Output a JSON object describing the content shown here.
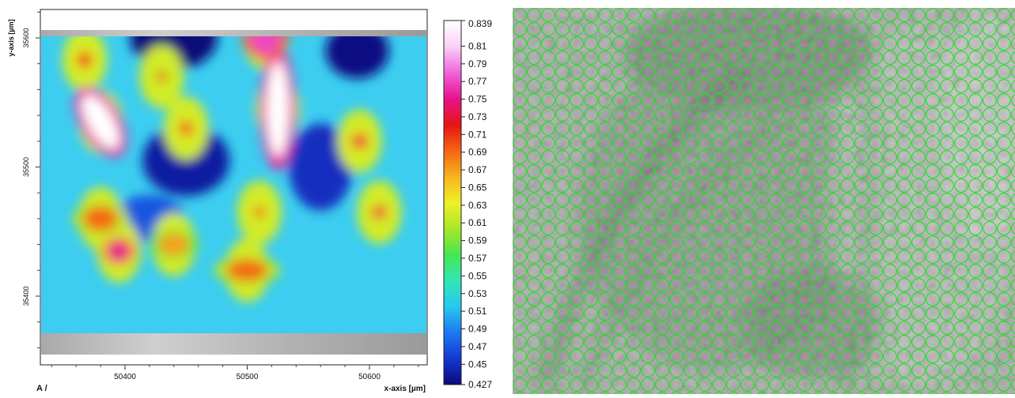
{
  "chart_data": {
    "type": "heatmap",
    "xlabel": "x-axis [µm]",
    "ylabel": "y-axis [µm]",
    "corner_label": "A /",
    "x_ticks": [
      "50400",
      "50500",
      "50600"
    ],
    "y_ticks": [
      "35600",
      "35500",
      "35400"
    ],
    "colorbar": {
      "ticks": [
        "0.839",
        "0.81",
        "0.79",
        "0.77",
        "0.75",
        "0.73",
        "0.71",
        "0.69",
        "0.67",
        "0.65",
        "0.63",
        "0.61",
        "0.59",
        "0.57",
        "0.55",
        "0.53",
        "0.51",
        "0.49",
        "0.47",
        "0.45",
        "0.427"
      ],
      "min": 0.427,
      "max": 0.839,
      "palette": [
        "#0a0a7a",
        "#1438d2",
        "#1e78f0",
        "#28c8f0",
        "#32e6b4",
        "#46e650",
        "#aae628",
        "#f0f028",
        "#f5b41e",
        "#f56414",
        "#e61414",
        "#e6148c",
        "#f064dc",
        "#fad2f5",
        "#ffffff"
      ]
    },
    "hotspots": [
      {
        "x": 50380,
        "y": 35535,
        "value": 0.839
      },
      {
        "x": 50525,
        "y": 35545,
        "value": 0.839
      },
      {
        "x": 50515,
        "y": 35600,
        "value": 0.77
      },
      {
        "x": 50367,
        "y": 35583,
        "value": 0.71
      },
      {
        "x": 50450,
        "y": 35530,
        "value": 0.71
      },
      {
        "x": 50430,
        "y": 35570,
        "value": 0.69
      },
      {
        "x": 50592,
        "y": 35520,
        "value": 0.73
      },
      {
        "x": 50608,
        "y": 35465,
        "value": 0.73
      },
      {
        "x": 50510,
        "y": 35465,
        "value": 0.71
      },
      {
        "x": 50395,
        "y": 35435,
        "value": 0.75
      },
      {
        "x": 50380,
        "y": 35460,
        "value": 0.69
      },
      {
        "x": 50440,
        "y": 35440,
        "value": 0.67
      },
      {
        "x": 50500,
        "y": 35420,
        "value": 0.69
      }
    ],
    "coldspots": [
      {
        "x": 50440,
        "y": 35600,
        "value": 0.427
      },
      {
        "x": 50450,
        "y": 35505,
        "value": 0.44
      },
      {
        "x": 50560,
        "y": 35500,
        "value": 0.45
      },
      {
        "x": 50590,
        "y": 35590,
        "value": 0.43
      },
      {
        "x": 50420,
        "y": 35460,
        "value": 0.47
      }
    ],
    "grid": false
  },
  "right_image": {
    "description_icon": "microscope-image",
    "overlay_color": "#22dd22"
  }
}
